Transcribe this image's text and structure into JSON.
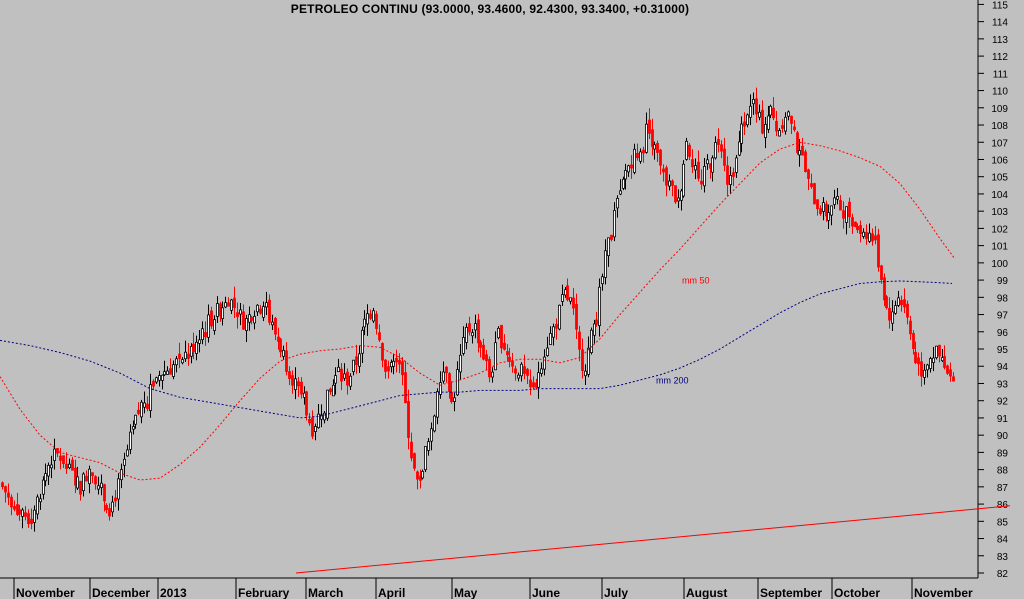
{
  "chart_data": {
    "type": "candlestick",
    "title": "PETROLEO CONTINU (93.0000, 93.4600, 92.4300, 93.3400, +0.31000)",
    "ylim": [
      82,
      115.5
    ],
    "y_ticks": [
      82,
      83,
      84,
      85,
      86,
      87,
      88,
      89,
      90,
      91,
      92,
      93,
      94,
      95,
      96,
      97,
      98,
      99,
      100,
      101,
      102,
      103,
      104,
      105,
      106,
      107,
      108,
      109,
      110,
      111,
      112,
      113,
      114,
      115
    ],
    "month_labels": [
      "November",
      "December",
      "2013",
      "February",
      "March",
      "April",
      "May",
      "June",
      "July",
      "August",
      "September",
      "October",
      "November"
    ],
    "colors": {
      "up": "#000000",
      "down": "#ff0000",
      "ma50": "#ff0000",
      "ma200": "#000080",
      "trend": "#ff0000",
      "background": "#c0c0c0"
    },
    "close_anchors": [
      [
        0,
        87.2
      ],
      [
        10,
        86.3
      ],
      [
        20,
        85.6
      ],
      [
        28,
        85.2
      ],
      [
        38,
        86.4
      ],
      [
        50,
        88.6
      ],
      [
        60,
        88.9
      ],
      [
        70,
        87.8
      ],
      [
        80,
        87.0
      ],
      [
        90,
        88.3
      ],
      [
        100,
        86.8
      ],
      [
        110,
        85.7
      ],
      [
        120,
        87.4
      ],
      [
        130,
        89.8
      ],
      [
        140,
        91.6
      ],
      [
        150,
        92.7
      ],
      [
        160,
        93.6
      ],
      [
        170,
        93.9
      ],
      [
        180,
        94.4
      ],
      [
        190,
        94.8
      ],
      [
        200,
        96.0
      ],
      [
        210,
        96.7
      ],
      [
        220,
        97.4
      ],
      [
        228,
        98.0
      ],
      [
        236,
        97.3
      ],
      [
        244,
        96.5
      ],
      [
        252,
        97.2
      ],
      [
        262,
        97.8
      ],
      [
        270,
        96.5
      ],
      [
        280,
        95.2
      ],
      [
        288,
        93.9
      ],
      [
        298,
        92.6
      ],
      [
        306,
        91.4
      ],
      [
        312,
        90.4
      ],
      [
        320,
        91.3
      ],
      [
        330,
        92.5
      ],
      [
        338,
        93.8
      ],
      [
        346,
        93.1
      ],
      [
        356,
        94.3
      ],
      [
        364,
        96.4
      ],
      [
        372,
        97.7
      ],
      [
        378,
        96.0
      ],
      [
        386,
        93.5
      ],
      [
        394,
        94.8
      ],
      [
        400,
        94.2
      ],
      [
        406,
        91.2
      ],
      [
        412,
        88.4
      ],
      [
        418,
        86.8
      ],
      [
        424,
        88.8
      ],
      [
        432,
        90.1
      ],
      [
        438,
        93.4
      ],
      [
        446,
        94.0
      ],
      [
        452,
        91.6
      ],
      [
        458,
        93.8
      ],
      [
        466,
        96.0
      ],
      [
        474,
        96.4
      ],
      [
        482,
        94.9
      ],
      [
        490,
        93.3
      ],
      [
        498,
        95.9
      ],
      [
        506,
        94.9
      ],
      [
        514,
        94.1
      ],
      [
        522,
        93.6
      ],
      [
        530,
        92.6
      ],
      [
        538,
        93.7
      ],
      [
        546,
        95.2
      ],
      [
        556,
        96.6
      ],
      [
        564,
        98.2
      ],
      [
        572,
        97.6
      ],
      [
        578,
        94.9
      ],
      [
        584,
        93.9
      ],
      [
        590,
        95.5
      ],
      [
        598,
        97.6
      ],
      [
        606,
        100.5
      ],
      [
        614,
        102.8
      ],
      [
        620,
        104.0
      ],
      [
        626,
        105.4
      ],
      [
        634,
        106.3
      ],
      [
        640,
        106.0
      ],
      [
        646,
        107.8
      ],
      [
        654,
        107.0
      ],
      [
        662,
        105.1
      ],
      [
        670,
        104.4
      ],
      [
        678,
        103.4
      ],
      [
        686,
        107.1
      ],
      [
        694,
        105.7
      ],
      [
        700,
        104.2
      ],
      [
        706,
        105.7
      ],
      [
        712,
        106.4
      ],
      [
        720,
        107.4
      ],
      [
        728,
        104.6
      ],
      [
        736,
        106.1
      ],
      [
        744,
        108.5
      ],
      [
        750,
        109.5
      ],
      [
        756,
        108.6
      ],
      [
        762,
        107.9
      ],
      [
        770,
        108.9
      ],
      [
        778,
        107.6
      ],
      [
        786,
        108.9
      ],
      [
        794,
        107.2
      ],
      [
        802,
        106.1
      ],
      [
        810,
        104.2
      ],
      [
        818,
        103.3
      ],
      [
        826,
        102.9
      ],
      [
        834,
        103.6
      ],
      [
        842,
        103.1
      ],
      [
        850,
        102.8
      ],
      [
        858,
        102.0
      ],
      [
        866,
        101.8
      ],
      [
        874,
        101.3
      ],
      [
        880,
        99.4
      ],
      [
        886,
        97.4
      ],
      [
        892,
        96.8
      ],
      [
        898,
        98.2
      ],
      [
        904,
        97.6
      ],
      [
        910,
        95.8
      ],
      [
        916,
        94.3
      ],
      [
        922,
        93.7
      ],
      [
        928,
        94.5
      ],
      [
        934,
        94.8
      ],
      [
        940,
        94.4
      ],
      [
        946,
        93.6
      ],
      [
        952,
        93.1
      ],
      [
        956,
        93.34
      ]
    ],
    "ma50": [
      [
        0,
        93.4
      ],
      [
        20,
        91.5
      ],
      [
        40,
        90.0
      ],
      [
        60,
        89.0
      ],
      [
        80,
        88.7
      ],
      [
        100,
        88.4
      ],
      [
        120,
        87.8
      ],
      [
        140,
        87.4
      ],
      [
        160,
        87.5
      ],
      [
        180,
        88.3
      ],
      [
        200,
        89.3
      ],
      [
        220,
        90.6
      ],
      [
        240,
        92.0
      ],
      [
        260,
        93.3
      ],
      [
        280,
        94.3
      ],
      [
        300,
        94.7
      ],
      [
        320,
        94.9
      ],
      [
        340,
        95.0
      ],
      [
        360,
        95.2
      ],
      [
        380,
        95.1
      ],
      [
        400,
        94.5
      ],
      [
        420,
        93.6
      ],
      [
        440,
        92.9
      ],
      [
        460,
        93.2
      ],
      [
        480,
        93.6
      ],
      [
        500,
        94.2
      ],
      [
        520,
        94.4
      ],
      [
        540,
        94.4
      ],
      [
        560,
        94.2
      ],
      [
        580,
        94.5
      ],
      [
        600,
        95.6
      ],
      [
        620,
        97.0
      ],
      [
        640,
        98.3
      ],
      [
        660,
        99.6
      ],
      [
        680,
        100.8
      ],
      [
        700,
        102.1
      ],
      [
        720,
        103.4
      ],
      [
        740,
        104.6
      ],
      [
        760,
        105.8
      ],
      [
        780,
        106.6
      ],
      [
        800,
        107.0
      ],
      [
        820,
        106.8
      ],
      [
        840,
        106.5
      ],
      [
        860,
        106.1
      ],
      [
        880,
        105.6
      ],
      [
        900,
        104.6
      ],
      [
        920,
        103.1
      ],
      [
        940,
        101.4
      ],
      [
        954,
        100.3
      ]
    ],
    "ma200": [
      [
        0,
        95.5
      ],
      [
        30,
        95.2
      ],
      [
        60,
        94.8
      ],
      [
        90,
        94.3
      ],
      [
        120,
        93.6
      ],
      [
        150,
        92.7
      ],
      [
        180,
        92.2
      ],
      [
        210,
        91.9
      ],
      [
        240,
        91.6
      ],
      [
        270,
        91.3
      ],
      [
        300,
        91.0
      ],
      [
        320,
        91.1
      ],
      [
        340,
        91.4
      ],
      [
        360,
        91.7
      ],
      [
        380,
        92.0
      ],
      [
        400,
        92.3
      ],
      [
        420,
        92.4
      ],
      [
        440,
        92.5
      ],
      [
        460,
        92.5
      ],
      [
        480,
        92.6
      ],
      [
        500,
        92.6
      ],
      [
        520,
        92.6
      ],
      [
        540,
        92.7
      ],
      [
        560,
        92.7
      ],
      [
        580,
        92.7
      ],
      [
        600,
        92.7
      ],
      [
        620,
        92.9
      ],
      [
        640,
        93.2
      ],
      [
        660,
        93.5
      ],
      [
        680,
        93.9
      ],
      [
        700,
        94.4
      ],
      [
        720,
        95.0
      ],
      [
        740,
        95.7
      ],
      [
        760,
        96.4
      ],
      [
        780,
        97.1
      ],
      [
        800,
        97.7
      ],
      [
        820,
        98.2
      ],
      [
        840,
        98.5
      ],
      [
        860,
        98.8
      ],
      [
        880,
        98.9
      ],
      [
        900,
        98.95
      ],
      [
        920,
        98.9
      ],
      [
        940,
        98.85
      ],
      [
        952,
        98.8
      ]
    ],
    "trend_line": [
      [
        296,
        82.0
      ],
      [
        1010,
        85.9
      ]
    ],
    "annotations": [
      {
        "text": "mm 50",
        "x": 682,
        "y": 98.8,
        "color": "#ff0000"
      },
      {
        "text": "mm 200",
        "x": 656,
        "y": 93.0,
        "color": "#000080"
      }
    ]
  }
}
